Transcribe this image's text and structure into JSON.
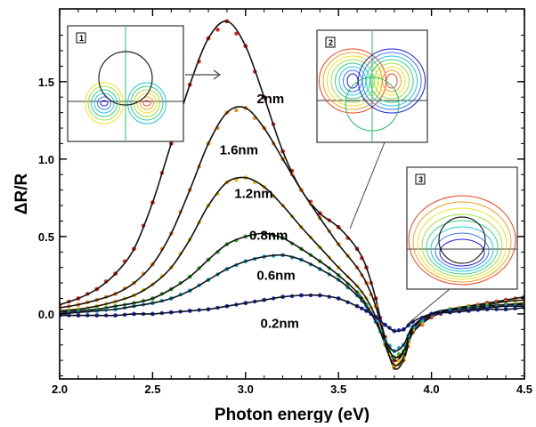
{
  "chart_data": {
    "type": "line",
    "xlabel": "Photon energy (eV)",
    "ylabel": "ΔR/R",
    "xlim": [
      2.0,
      4.5
    ],
    "ylim": [
      -0.42,
      1.97
    ],
    "x_ticks": [
      2.0,
      2.5,
      3.0,
      3.5,
      4.0,
      4.5
    ],
    "x_tick_labels": [
      "2.0",
      "2.5",
      "3.0",
      "3.5",
      "4.0",
      "4.5"
    ],
    "y_ticks": [
      0.0,
      0.5,
      1.0,
      1.5
    ],
    "y_tick_labels": [
      "0.0",
      "0.5",
      "1.0",
      "1.5"
    ],
    "grid": false,
    "legend": "none",
    "x": [
      2.0,
      2.1,
      2.2,
      2.3,
      2.4,
      2.5,
      2.6,
      2.7,
      2.8,
      2.9,
      3.0,
      3.1,
      3.2,
      3.3,
      3.4,
      3.5,
      3.6,
      3.65,
      3.7,
      3.75,
      3.8,
      3.85,
      3.9,
      4.0,
      4.1,
      4.2,
      4.3,
      4.4,
      4.5
    ],
    "series": [
      {
        "name": "2nm",
        "color": "#e8241a",
        "values": [
          0.06,
          0.1,
          0.16,
          0.26,
          0.42,
          0.72,
          1.1,
          1.48,
          1.78,
          1.89,
          1.73,
          1.4,
          1.05,
          0.8,
          0.65,
          0.56,
          0.42,
          0.3,
          0.1,
          -0.15,
          -0.3,
          -0.25,
          -0.12,
          -0.02,
          0.02,
          0.05,
          0.07,
          0.09,
          0.11
        ]
      },
      {
        "name": "1.6nm",
        "color": "#f08c1c",
        "values": [
          0.04,
          0.06,
          0.09,
          0.13,
          0.2,
          0.32,
          0.52,
          0.8,
          1.1,
          1.3,
          1.33,
          1.2,
          1.0,
          0.8,
          0.62,
          0.45,
          0.3,
          0.2,
          0.05,
          -0.17,
          -0.35,
          -0.3,
          -0.12,
          -0.01,
          0.03,
          0.05,
          0.06,
          0.08,
          0.09
        ]
      },
      {
        "name": "1.2nm",
        "color": "#e8c31a",
        "values": [
          0.02,
          0.03,
          0.05,
          0.08,
          0.12,
          0.19,
          0.3,
          0.48,
          0.7,
          0.85,
          0.88,
          0.82,
          0.7,
          0.56,
          0.43,
          0.3,
          0.18,
          0.1,
          -0.02,
          -0.2,
          -0.33,
          -0.28,
          -0.1,
          0.0,
          0.03,
          0.04,
          0.05,
          0.06,
          0.07
        ]
      },
      {
        "name": "0.8nm",
        "color": "#3ab52c",
        "values": [
          0.01,
          0.02,
          0.03,
          0.05,
          0.07,
          0.1,
          0.16,
          0.24,
          0.35,
          0.45,
          0.5,
          0.52,
          0.49,
          0.42,
          0.34,
          0.25,
          0.14,
          0.06,
          -0.05,
          -0.18,
          -0.28,
          -0.24,
          -0.09,
          0.0,
          0.03,
          0.04,
          0.05,
          0.06,
          0.06
        ]
      },
      {
        "name": "0.6nm",
        "color": "#1ea0c8",
        "values": [
          0.0,
          0.01,
          0.02,
          0.03,
          0.05,
          0.07,
          0.1,
          0.15,
          0.22,
          0.29,
          0.34,
          0.37,
          0.38,
          0.35,
          0.29,
          0.22,
          0.12,
          0.05,
          -0.05,
          -0.17,
          -0.24,
          -0.2,
          -0.08,
          0.0,
          0.02,
          0.03,
          0.04,
          0.05,
          0.05
        ]
      },
      {
        "name": "0.2nm",
        "color": "#1a2ae0",
        "values": [
          -0.01,
          -0.01,
          -0.01,
          -0.01,
          0.0,
          0.0,
          0.01,
          0.02,
          0.03,
          0.05,
          0.07,
          0.09,
          0.11,
          0.12,
          0.12,
          0.1,
          0.05,
          0.02,
          -0.02,
          -0.07,
          -0.11,
          -0.1,
          -0.05,
          0.0,
          0.01,
          0.02,
          0.03,
          0.03,
          0.04
        ]
      }
    ],
    "insets": [
      {
        "tag": "1"
      },
      {
        "tag": "2"
      },
      {
        "tag": "3"
      }
    ]
  }
}
